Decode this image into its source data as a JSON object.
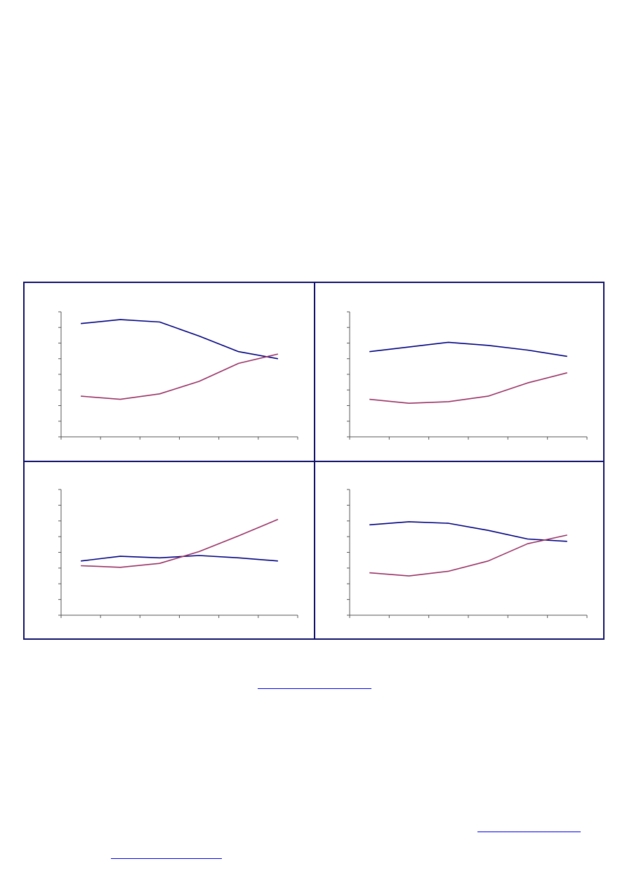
{
  "chart_data": [
    {
      "type": "line",
      "ylim": [
        0,
        8
      ],
      "grid": false,
      "series": [
        {
          "color": "#000080",
          "values": [
            7.25,
            7.5,
            7.35,
            6.45,
            5.45,
            5.0
          ]
        },
        {
          "color": "#993366",
          "values": [
            2.6,
            2.4,
            2.75,
            3.55,
            4.7,
            5.3
          ]
        }
      ]
    },
    {
      "type": "line",
      "ylim": [
        0,
        8
      ],
      "grid": false,
      "series": [
        {
          "color": "#000080",
          "values": [
            5.45,
            5.75,
            6.05,
            5.85,
            5.55,
            5.15
          ]
        },
        {
          "color": "#993366",
          "values": [
            2.4,
            2.15,
            2.25,
            2.6,
            3.45,
            4.1
          ]
        }
      ]
    },
    {
      "type": "line",
      "ylim": [
        0,
        8
      ],
      "grid": false,
      "series": [
        {
          "color": "#000080",
          "values": [
            3.45,
            3.75,
            3.65,
            3.8,
            3.65,
            3.45
          ]
        },
        {
          "color": "#993366",
          "values": [
            3.15,
            3.05,
            3.3,
            4.05,
            5.05,
            6.1
          ]
        }
      ]
    },
    {
      "type": "line",
      "ylim": [
        0,
        8
      ],
      "grid": false,
      "series": [
        {
          "color": "#000080",
          "values": [
            5.75,
            5.95,
            5.85,
            5.4,
            4.85,
            4.7
          ]
        },
        {
          "color": "#993366",
          "values": [
            2.7,
            2.5,
            2.8,
            3.45,
            4.55,
            5.1
          ]
        }
      ]
    }
  ]
}
